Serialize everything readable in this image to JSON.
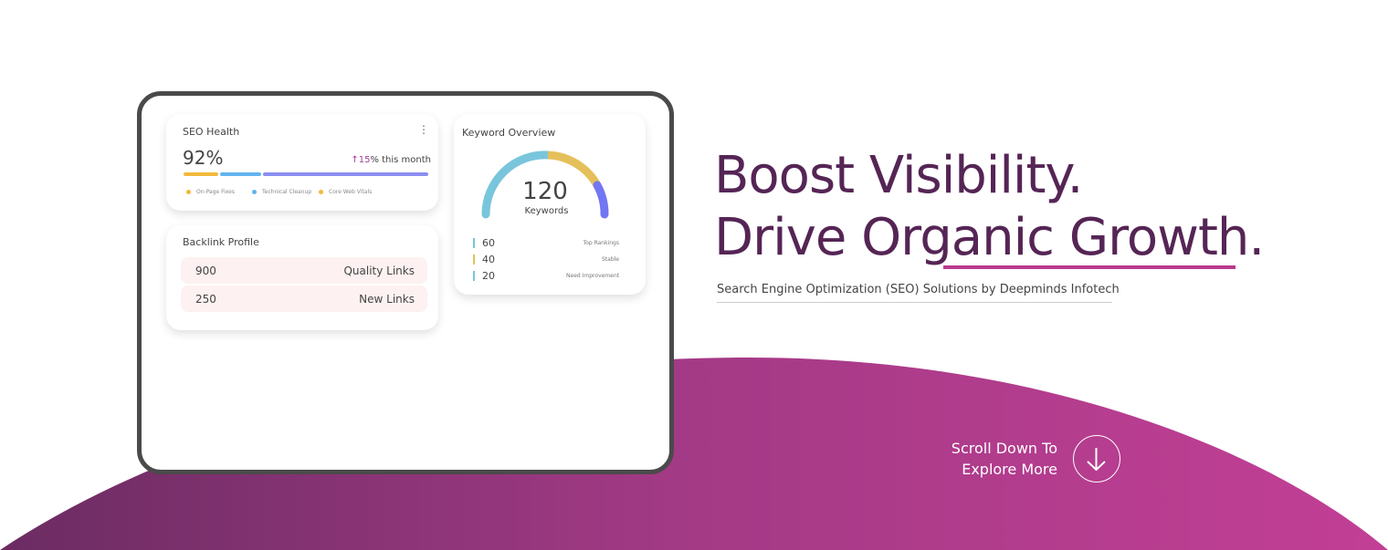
{
  "seo_health": {
    "title": "SEO Health",
    "value": "92%",
    "trend_arrow": "↑",
    "trend_value": "15",
    "trend_suffix": "% this month",
    "bar": [
      {
        "label": "On-Page Fixes",
        "color": "#f2b93b"
      },
      {
        "label": "Technical Cleanup",
        "color": "#62b4ee"
      },
      {
        "label": "Core Web Vitals",
        "color": "#f2b93b"
      }
    ],
    "bar_segment_colors": [
      "#f2b93b",
      "#62b4ee",
      "#8b8ef0"
    ]
  },
  "keyword_overview": {
    "title": "Keyword Overview",
    "total": "120",
    "total_label": "Keywords",
    "items": [
      {
        "value": "60",
        "label": "Top Rankings",
        "color": "#79c5dc"
      },
      {
        "value": "40",
        "label": "Stable",
        "color": "#e5c05a"
      },
      {
        "value": "20",
        "label": "Need Improvement",
        "color": "#79c5dc"
      }
    ],
    "gauge_colors": [
      "#79c5dc",
      "#e5c05a",
      "#7276f2"
    ]
  },
  "backlink_profile": {
    "title": "Backlink Profile",
    "rows": [
      {
        "value": "900",
        "label": "Quality Links"
      },
      {
        "value": "250",
        "label": "New Links"
      }
    ]
  },
  "hero": {
    "line1": "Boost Visibility.",
    "line2": "Drive Organic Growth.",
    "subtitle": "Search Engine Optimization (SEO) Solutions by Deepminds Infotech"
  },
  "scroll": {
    "line1": "Scroll Down To",
    "line2": "Explore More",
    "icon": "arrow-down-icon"
  },
  "colors": {
    "brand_dark": "#552555",
    "wave_start": "#6b2c62",
    "wave_end": "#c23f95",
    "accent": "#c03d94"
  }
}
